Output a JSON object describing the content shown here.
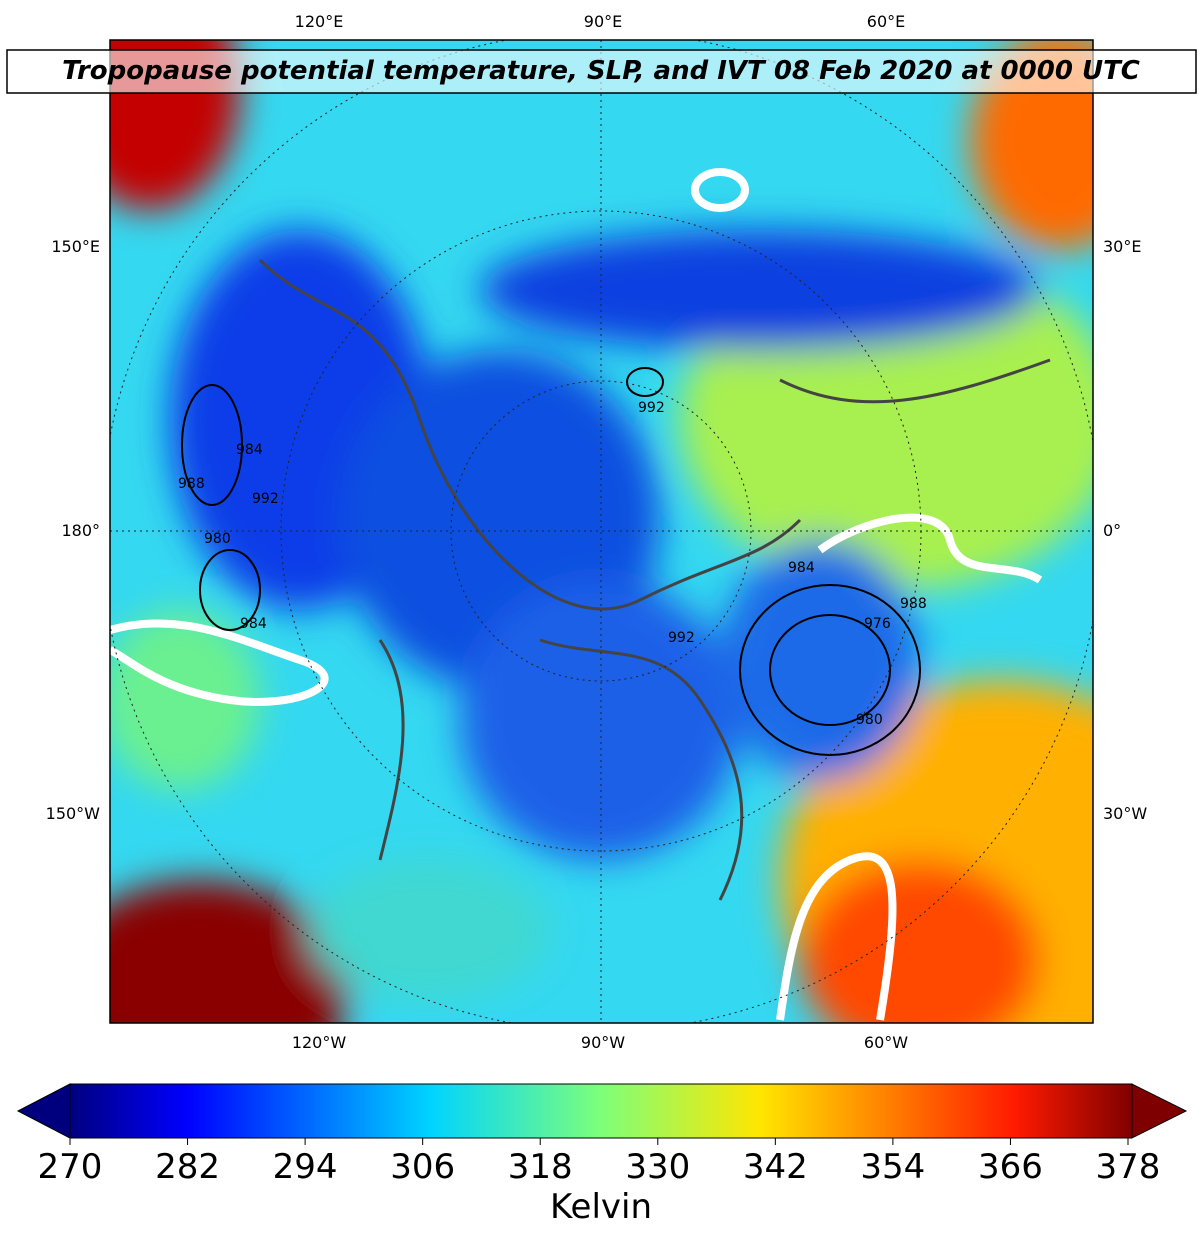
{
  "title": "Tropopause potential temperature, SLP, and IVT 08 Feb 2020 at 0000 UTC",
  "map": {
    "lon_labels_top": [
      "120°E",
      "90°E",
      "60°E"
    ],
    "lon_labels_bottom": [
      "120°W",
      "90°W",
      "60°W"
    ],
    "lat_labels_left": [
      "150°E",
      "180°",
      "150°W"
    ],
    "lat_labels_right": [
      "30°E",
      "0°",
      "30°W"
    ],
    "contour_labels": [
      "992",
      "984",
      "988",
      "992",
      "980",
      "984",
      "992",
      "988",
      "976",
      "980",
      "984"
    ]
  },
  "colorbar": {
    "lim": [
      270,
      378
    ],
    "ticks": [
      270,
      282,
      294,
      306,
      318,
      330,
      342,
      354,
      366,
      378
    ],
    "label": "Kelvin"
  }
}
